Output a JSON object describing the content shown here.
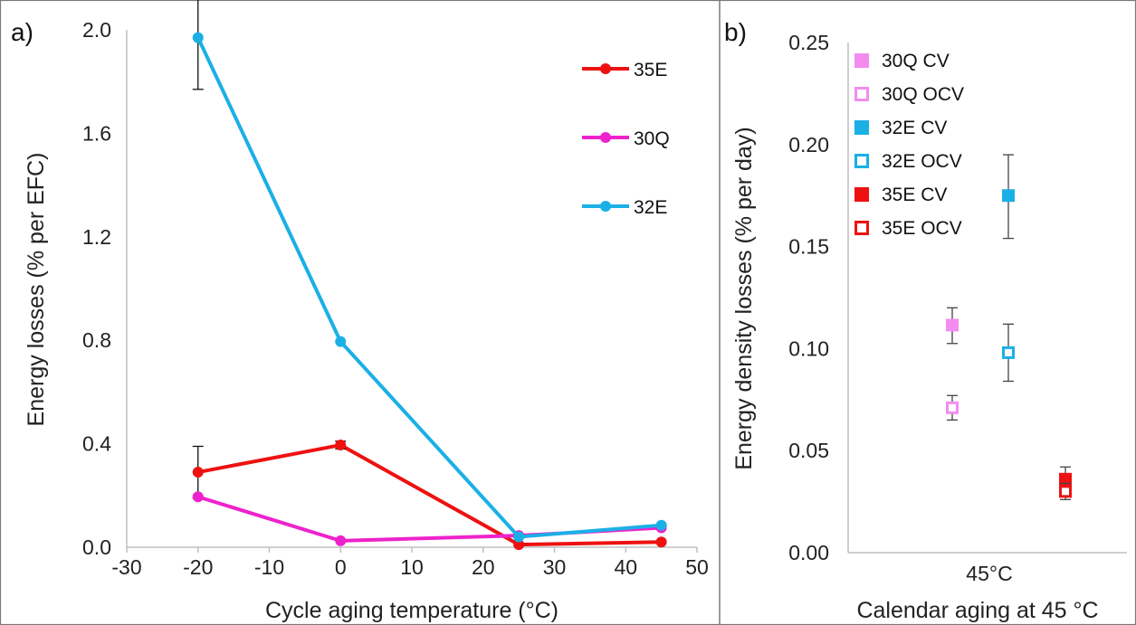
{
  "colors": {
    "35E": "#ee1111",
    "30Q": "#ee22cc",
    "32E": "#1ab0e6",
    "30Q_light": "#f48cf0",
    "frame": "#7a7a7a",
    "axis": "#bfbfbf"
  },
  "chart_data": [
    {
      "panel_label": "a)",
      "type": "line",
      "xlabel": "Cycle aging temperature (°C)",
      "ylabel": "Energy losses (% per EFC)",
      "xlim": [
        -30,
        50
      ],
      "ylim": [
        0,
        2.0
      ],
      "xticks": [
        -30,
        -20,
        -10,
        0,
        10,
        20,
        30,
        40,
        50
      ],
      "xtick_labels": [
        "-30",
        "-20",
        "-10",
        "0",
        "10",
        "20",
        "30",
        "40",
        "50"
      ],
      "yticks": [
        0,
        0.4,
        0.8,
        1.2,
        1.6,
        2.0
      ],
      "ytick_labels": [
        "0.0",
        "0.4",
        "0.8",
        "1.2",
        "1.6",
        "2.0"
      ],
      "grid": false,
      "legend_position": "top-right",
      "x": [
        -20,
        0,
        25,
        45
      ],
      "series": [
        {
          "name": "35E",
          "color": "#ee1111",
          "values": [
            0.29,
            0.395,
            0.01,
            0.02
          ],
          "err": [
            0.1,
            0.015,
            0,
            0
          ]
        },
        {
          "name": "30Q",
          "color": "#ee22cc",
          "values": [
            0.195,
            0.025,
            0.045,
            0.075
          ],
          "err": [
            0,
            0,
            0,
            0
          ]
        },
        {
          "name": "32E",
          "color": "#1ab0e6",
          "values": [
            1.97,
            0.795,
            0.04,
            0.085
          ],
          "err": [
            0.2,
            0,
            0,
            0
          ]
        }
      ]
    },
    {
      "panel_label": "b)",
      "type": "scatter",
      "xlabel": "Calendar aging at 45 °C",
      "ylabel": "Energy density losses (% per day)",
      "category_label": "45°C",
      "ylim": [
        0,
        0.25
      ],
      "yticks": [
        0,
        0.05,
        0.1,
        0.15,
        0.2,
        0.25
      ],
      "ytick_labels": [
        "0.00",
        "0.05",
        "0.10",
        "0.15",
        "0.20",
        "0.25"
      ],
      "grid": false,
      "legend_position": "top-left",
      "series": [
        {
          "name": "30Q CV",
          "color": "#f48cf0",
          "filled": true,
          "group": 0,
          "value": 0.1115,
          "err_low": 0.009,
          "err_high": 0.0085
        },
        {
          "name": "30Q OCV",
          "color": "#f48cf0",
          "filled": false,
          "group": 0,
          "value": 0.071,
          "err_low": 0.006,
          "err_high": 0.006
        },
        {
          "name": "32E CV",
          "color": "#1ab0e6",
          "filled": true,
          "group": 1,
          "value": 0.175,
          "err_low": 0.021,
          "err_high": 0.02
        },
        {
          "name": "32E OCV",
          "color": "#1ab0e6",
          "filled": false,
          "group": 1,
          "value": 0.098,
          "err_low": 0.014,
          "err_high": 0.014
        },
        {
          "name": "35E CV",
          "color": "#ee1111",
          "filled": true,
          "group": 2,
          "value": 0.036,
          "err_low": 0.005,
          "err_high": 0.006
        },
        {
          "name": "35E OCV",
          "color": "#ee1111",
          "filled": false,
          "group": 2,
          "value": 0.03,
          "err_low": 0.004,
          "err_high": 0.004
        }
      ]
    }
  ]
}
